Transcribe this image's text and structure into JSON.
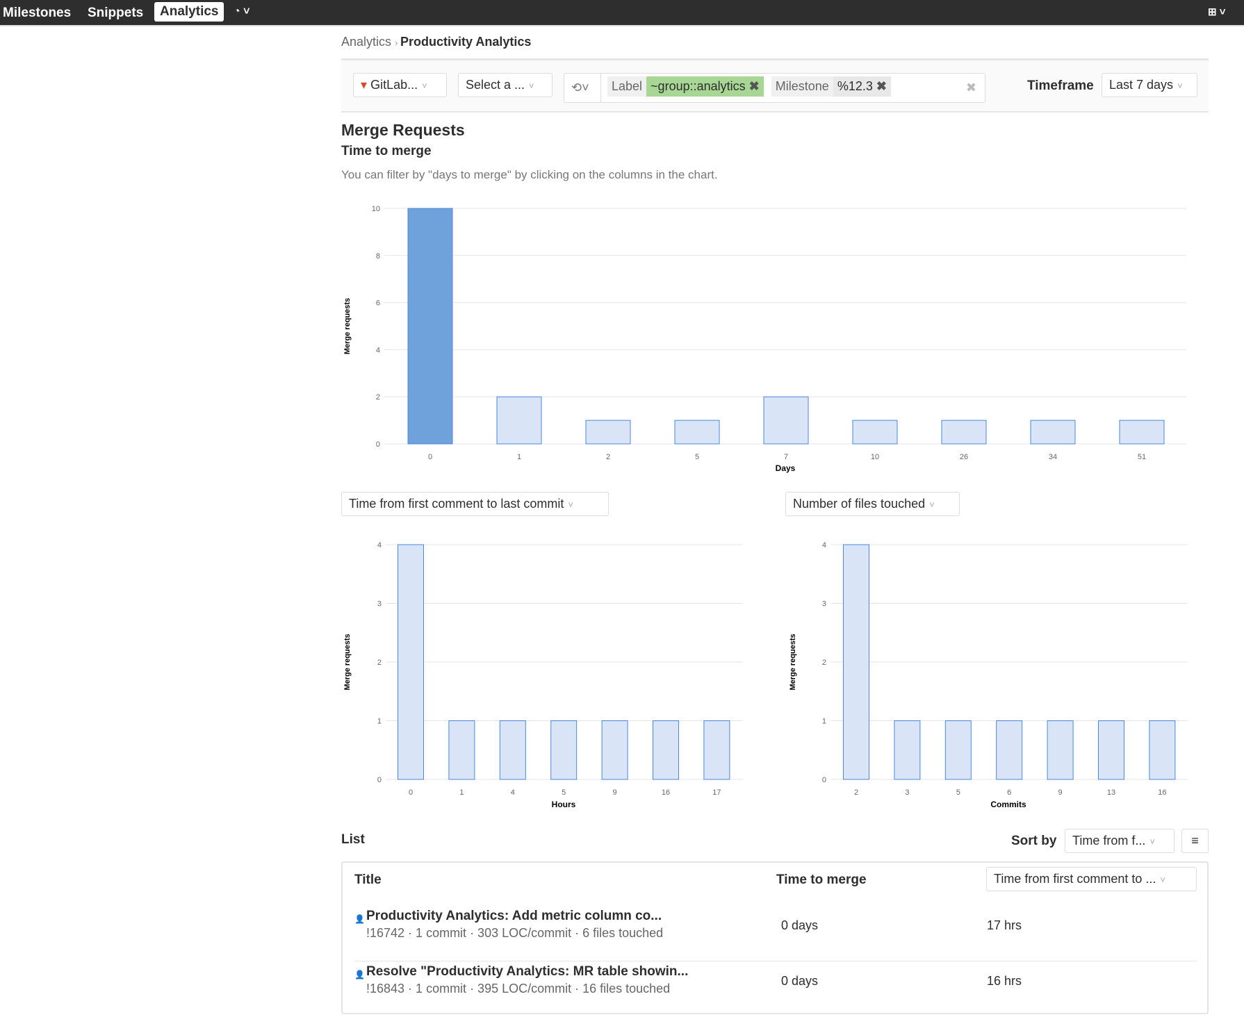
{
  "nav": {
    "items": [
      "Milestones",
      "Snippets",
      "Analytics"
    ],
    "active": "Analytics",
    "icons": [
      "dashboard-gauge-icon",
      "plus-square-icon"
    ]
  },
  "breadcrumb": {
    "parent": "Analytics",
    "current": "Productivity Analytics"
  },
  "filters": {
    "group": "GitLab...",
    "project": "Select a ...",
    "history_icon": "history-icon",
    "tokens": [
      {
        "key": "Label",
        "value": "~group::analytics",
        "color": "#a8d695"
      },
      {
        "key": "Milestone",
        "value": "%12.3",
        "color": "#eeeeee"
      }
    ],
    "timeframe_label": "Timeframe",
    "timeframe": "Last 7 days"
  },
  "section": {
    "title": "Merge Requests",
    "subtitle": "Time to merge",
    "description": "You can filter by \"days to merge\" by clicking on the columns in the chart."
  },
  "chart_data": [
    {
      "type": "bar",
      "xlabel": "Days",
      "ylabel": "Merge requests",
      "categories": [
        "0",
        "1",
        "2",
        "5",
        "7",
        "10",
        "26",
        "34",
        "51"
      ],
      "values": [
        10,
        2,
        1,
        1,
        2,
        1,
        1,
        1,
        1
      ],
      "selected": "0",
      "ylim": [
        0,
        10
      ],
      "yticks": [
        0,
        2,
        4,
        6,
        8,
        10
      ],
      "grid": true
    },
    {
      "type": "bar",
      "xlabel": "Hours",
      "ylabel": "Merge requests",
      "categories": [
        "0",
        "1",
        "4",
        "5",
        "9",
        "16",
        "17"
      ],
      "values": [
        4,
        1,
        1,
        1,
        1,
        1,
        1
      ],
      "ylim": [
        0,
        4
      ],
      "yticks": [
        0,
        1,
        2,
        3,
        4
      ],
      "grid": true
    },
    {
      "type": "bar",
      "xlabel": "Commits",
      "ylabel": "Merge requests",
      "categories": [
        "2",
        "3",
        "5",
        "6",
        "9",
        "13",
        "16"
      ],
      "values": [
        4,
        1,
        1,
        1,
        1,
        1,
        1
      ],
      "ylim": [
        0,
        4
      ],
      "yticks": [
        0,
        1,
        2,
        3,
        4
      ],
      "grid": true
    }
  ],
  "metric_selects": {
    "left": "Time from first comment to last commit",
    "right": "Number of files touched"
  },
  "list": {
    "title": "List",
    "sort_label": "Sort by",
    "sort_value": "Time from f...",
    "columns": [
      "Title",
      "Time to merge"
    ],
    "metric_column": "Time from first comment to ...",
    "rows": [
      {
        "title": "Productivity Analytics: Add metric column co...",
        "meta": "!16742 · 1 commit · 303 LOC/commit · 6 files touched",
        "time_to_merge": "0 days",
        "metric": "17 hrs"
      },
      {
        "title": "Resolve \"Productivity Analytics: MR table showin...",
        "meta": "!16843 · 1 commit · 395 LOC/commit · 16 files touched",
        "time_to_merge": "0 days",
        "metric": "16 hrs"
      }
    ]
  }
}
